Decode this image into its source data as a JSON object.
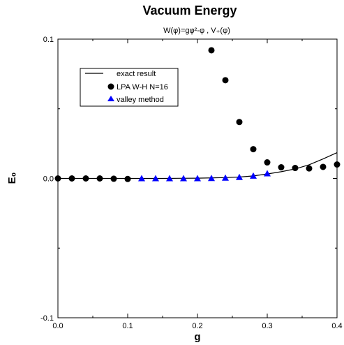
{
  "chart_data": {
    "type": "scatter",
    "title": "Vacuum Energy",
    "subtitle": "W(φ)=gφ²-φ , V₊(φ)",
    "xlabel": "g",
    "ylabel": "E₀",
    "xlim": [
      0.0,
      0.4
    ],
    "ylim": [
      -0.1,
      0.1
    ],
    "x_ticks": [
      {
        "value": 0.0,
        "label": "0.0"
      },
      {
        "value": 0.1,
        "label": "0.1"
      },
      {
        "value": 0.2,
        "label": "0.2"
      },
      {
        "value": 0.3,
        "label": "0.3"
      },
      {
        "value": 0.4,
        "label": "0.4"
      }
    ],
    "y_ticks": [
      {
        "value": -0.1,
        "label": "-0.1"
      },
      {
        "value": 0.0,
        "label": "0.0"
      },
      {
        "value": 0.1,
        "label": "0.1"
      }
    ],
    "grid": false,
    "legend_position": "top-left",
    "series": [
      {
        "name": "exact result",
        "kind": "line",
        "color": "#000000",
        "points": [
          [
            0.0,
            0.0
          ],
          [
            0.05,
            0.0
          ],
          [
            0.1,
            0.0
          ],
          [
            0.15,
            0.0
          ],
          [
            0.2,
            0.0002
          ],
          [
            0.24,
            0.0006
          ],
          [
            0.26,
            0.001
          ],
          [
            0.28,
            0.0018
          ],
          [
            0.3,
            0.0032
          ],
          [
            0.32,
            0.0048
          ],
          [
            0.34,
            0.0068
          ],
          [
            0.36,
            0.0098
          ],
          [
            0.38,
            0.014
          ],
          [
            0.4,
            0.0185
          ]
        ]
      },
      {
        "name": "LPA W-H N=16",
        "kind": "marker-circle",
        "color": "#000000",
        "points": [
          [
            0.0,
            0.0
          ],
          [
            0.02,
            0.0
          ],
          [
            0.04,
            0.0
          ],
          [
            0.06,
            0.0
          ],
          [
            0.08,
            -0.0002
          ],
          [
            0.1,
            -0.0004
          ],
          [
            0.22,
            0.092
          ],
          [
            0.24,
            0.0705
          ],
          [
            0.26,
            0.0405
          ],
          [
            0.28,
            0.021
          ],
          [
            0.3,
            0.0115
          ],
          [
            0.32,
            0.008
          ],
          [
            0.34,
            0.0075
          ],
          [
            0.36,
            0.0072
          ],
          [
            0.38,
            0.0083
          ],
          [
            0.4,
            0.01
          ]
        ]
      },
      {
        "name": "valley method",
        "kind": "marker-triangle",
        "color": "#0000ff",
        "points": [
          [
            0.12,
            0.0
          ],
          [
            0.14,
            0.0
          ],
          [
            0.16,
            0.0
          ],
          [
            0.18,
            0.0
          ],
          [
            0.2,
            0.0
          ],
          [
            0.22,
            0.0001
          ],
          [
            0.24,
            0.0004
          ],
          [
            0.26,
            0.0009
          ],
          [
            0.28,
            0.0018
          ],
          [
            0.3,
            0.0035
          ]
        ]
      }
    ]
  }
}
